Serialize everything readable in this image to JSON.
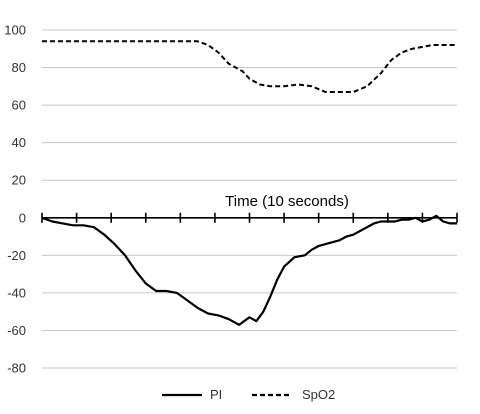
{
  "chart_data": {
    "type": "line",
    "title": "",
    "xlabel": "Time (10 seconds)",
    "ylabel": "",
    "ylim": [
      -80,
      100
    ],
    "yticks": [
      100,
      80,
      60,
      40,
      20,
      0,
      -20,
      -40,
      -60,
      -80
    ],
    "x_tick_count": 12,
    "xlim": [
      0,
      12
    ],
    "grid": true,
    "legend_position": "bottom",
    "series": [
      {
        "name": "PI",
        "style": "solid",
        "color": "#000000",
        "x": [
          0,
          0.3,
          0.6,
          0.9,
          1.2,
          1.5,
          1.8,
          2.1,
          2.4,
          2.7,
          3.0,
          3.3,
          3.6,
          3.9,
          4.2,
          4.5,
          4.8,
          5.1,
          5.4,
          5.7,
          6.0,
          6.2,
          6.4,
          6.6,
          6.8,
          7.0,
          7.3,
          7.6,
          7.8,
          8.0,
          8.2,
          8.4,
          8.6,
          8.8,
          9.0,
          9.2,
          9.4,
          9.6,
          9.8,
          10.0,
          10.2,
          10.4,
          10.6,
          10.8,
          11.0,
          11.2,
          11.4,
          11.6,
          11.8,
          12.0
        ],
        "values": [
          0,
          -2,
          -3,
          -4,
          -4,
          -5,
          -9,
          -14,
          -20,
          -28,
          -35,
          -39,
          -39,
          -40,
          -44,
          -48,
          -51,
          -52,
          -54,
          -57,
          -53,
          -55,
          -50,
          -42,
          -33,
          -26,
          -21,
          -20,
          -17,
          -15,
          -14,
          -13,
          -12,
          -10,
          -9,
          -7,
          -5,
          -3,
          -2,
          -2,
          -2,
          -1,
          -1,
          0,
          -2,
          -1,
          1,
          -2,
          -3,
          -3
        ]
      },
      {
        "name": "SpO2",
        "style": "dashed",
        "color": "#000000",
        "x": [
          0,
          1,
          2,
          3,
          4,
          4.5,
          4.8,
          5.1,
          5.4,
          5.8,
          6.0,
          6.3,
          6.6,
          7.0,
          7.4,
          7.8,
          8.2,
          8.6,
          9.0,
          9.4,
          9.8,
          10.1,
          10.4,
          10.7,
          11.0,
          11.3,
          11.6,
          12.0
        ],
        "values": [
          94,
          94,
          94,
          94,
          94,
          94,
          92,
          88,
          82,
          78,
          74,
          71,
          70,
          70,
          71,
          70,
          67,
          67,
          67,
          70,
          77,
          84,
          88,
          90,
          91,
          92,
          92,
          92
        ]
      }
    ]
  }
}
